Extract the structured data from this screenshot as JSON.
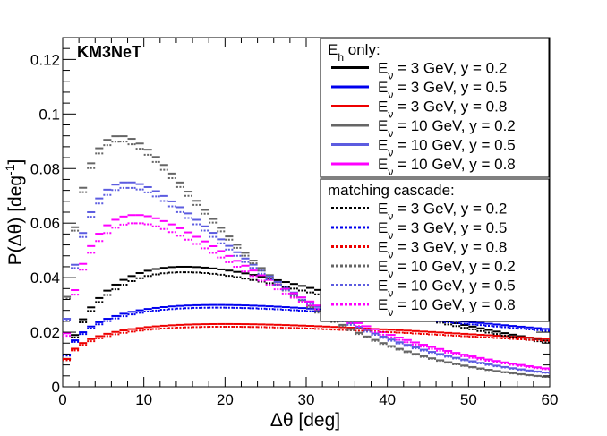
{
  "chart_data": {
    "type": "line",
    "title": "KM3NeT",
    "xlabel": "Δθ [deg]",
    "ylabel": "P(Δθ) [deg⁻¹]",
    "ylabel_parts": {
      "main": "P(Δθ) [deg",
      "sup": "-1",
      "end": "]"
    },
    "xlim": [
      0,
      60
    ],
    "ylim": [
      0,
      0.128
    ],
    "xticks": [
      0,
      10,
      20,
      30,
      40,
      50,
      60
    ],
    "xtick_labels": [
      "0",
      "10",
      "20",
      "30",
      "40",
      "50",
      "60"
    ],
    "yticks": [
      0,
      0.02,
      0.04,
      0.06,
      0.08,
      0.1,
      0.12
    ],
    "ytick_labels": [
      "0",
      "0.02",
      "0.04",
      "0.06",
      "0.08",
      "0.1",
      "0.12"
    ],
    "legend_groups": [
      {
        "title": "E_h only:",
        "title_main": "E",
        "title_sub": "h",
        "title_rest": " only:"
      },
      {
        "title": "matching cascade:",
        "title_main": "matching cascade:",
        "title_sub": "",
        "title_rest": ""
      }
    ],
    "series": [
      {
        "name": "E_ν = 3 GeV, y = 0.2",
        "label_main": "E",
        "label_sub": "ν",
        "label_rest": " = 3 GeV, y = 0.2",
        "group": 0,
        "color": "#000000",
        "style": "solid",
        "peak_x": 15,
        "peak_y": 0.044,
        "decay": 5,
        "rise": 1.6
      },
      {
        "name": "E_ν = 3 GeV, y = 0.5",
        "label_main": "E",
        "label_sub": "ν",
        "label_rest": " = 3 GeV, y = 0.5",
        "group": 0,
        "color": "#0000ee",
        "style": "solid",
        "peak_x": 19,
        "peak_y": 0.03,
        "decay": 9,
        "rise": 1.35
      },
      {
        "name": "E_ν = 3 GeV, y = 0.8",
        "label_main": "E",
        "label_sub": "ν",
        "label_rest": " = 3 GeV, y = 0.8",
        "group": 0,
        "color": "#ee0000",
        "style": "solid",
        "peak_x": 20,
        "peak_y": 0.023,
        "decay": 13,
        "rise": 1.3
      },
      {
        "name": "E_ν = 10 GeV, y = 0.2",
        "label_main": "E",
        "label_sub": "ν",
        "label_rest": " = 10 GeV, y = 0.2",
        "group": 0,
        "color": "#666666",
        "style": "solid",
        "peak_x": 7,
        "peak_y": 0.092,
        "decay": 1.9,
        "rise": 1.6
      },
      {
        "name": "E_ν = 10 GeV, y = 0.5",
        "label_main": "E",
        "label_sub": "ν",
        "label_rest": " = 10 GeV, y = 0.5",
        "group": 0,
        "color": "#5c5ce0",
        "style": "solid",
        "peak_x": 8,
        "peak_y": 0.075,
        "decay": 2.2,
        "rise": 1.6
      },
      {
        "name": "E_ν = 10 GeV, y = 0.8",
        "label_main": "E",
        "label_sub": "ν",
        "label_rest": " = 10 GeV, y = 0.8",
        "group": 0,
        "color": "#ff00ff",
        "style": "solid",
        "peak_x": 9,
        "peak_y": 0.063,
        "decay": 2.8,
        "rise": 1.6
      },
      {
        "name": "E_ν = 3 GeV, y = 0.2",
        "label_main": "E",
        "label_sub": "ν",
        "label_rest": " = 3 GeV, y = 0.2",
        "group": 1,
        "color": "#000000",
        "style": "dotted",
        "peak_x": 15,
        "peak_y": 0.042,
        "decay": 5,
        "rise": 1.6
      },
      {
        "name": "E_ν = 3 GeV, y = 0.5",
        "label_main": "E",
        "label_sub": "ν",
        "label_rest": " = 3 GeV, y = 0.5",
        "group": 1,
        "color": "#0000ee",
        "style": "dotted",
        "peak_x": 19,
        "peak_y": 0.029,
        "decay": 9,
        "rise": 1.35
      },
      {
        "name": "E_ν = 3 GeV, y = 0.8",
        "label_main": "E",
        "label_sub": "ν",
        "label_rest": " = 3 GeV, y = 0.8",
        "group": 1,
        "color": "#ee0000",
        "style": "dotted",
        "peak_x": 20,
        "peak_y": 0.022,
        "decay": 13,
        "rise": 1.3
      },
      {
        "name": "E_ν = 10 GeV, y = 0.2",
        "label_main": "E",
        "label_sub": "ν",
        "label_rest": " = 10 GeV, y = 0.2",
        "group": 1,
        "color": "#666666",
        "style": "dotted",
        "peak_x": 7,
        "peak_y": 0.09,
        "decay": 1.9,
        "rise": 1.6
      },
      {
        "name": "E_ν = 10 GeV, y = 0.5",
        "label_main": "E",
        "label_sub": "ν",
        "label_rest": " = 10 GeV, y = 0.5",
        "group": 1,
        "color": "#5c5ce0",
        "style": "dotted",
        "peak_x": 8,
        "peak_y": 0.073,
        "decay": 2.2,
        "rise": 1.6
      },
      {
        "name": "E_ν = 10 GeV, y = 0.8",
        "label_main": "E",
        "label_sub": "ν",
        "label_rest": " = 10 GeV, y = 0.8",
        "group": 1,
        "color": "#ff00ff",
        "style": "dotted",
        "peak_x": 9,
        "peak_y": 0.06,
        "decay": 2.8,
        "rise": 1.6
      }
    ]
  }
}
